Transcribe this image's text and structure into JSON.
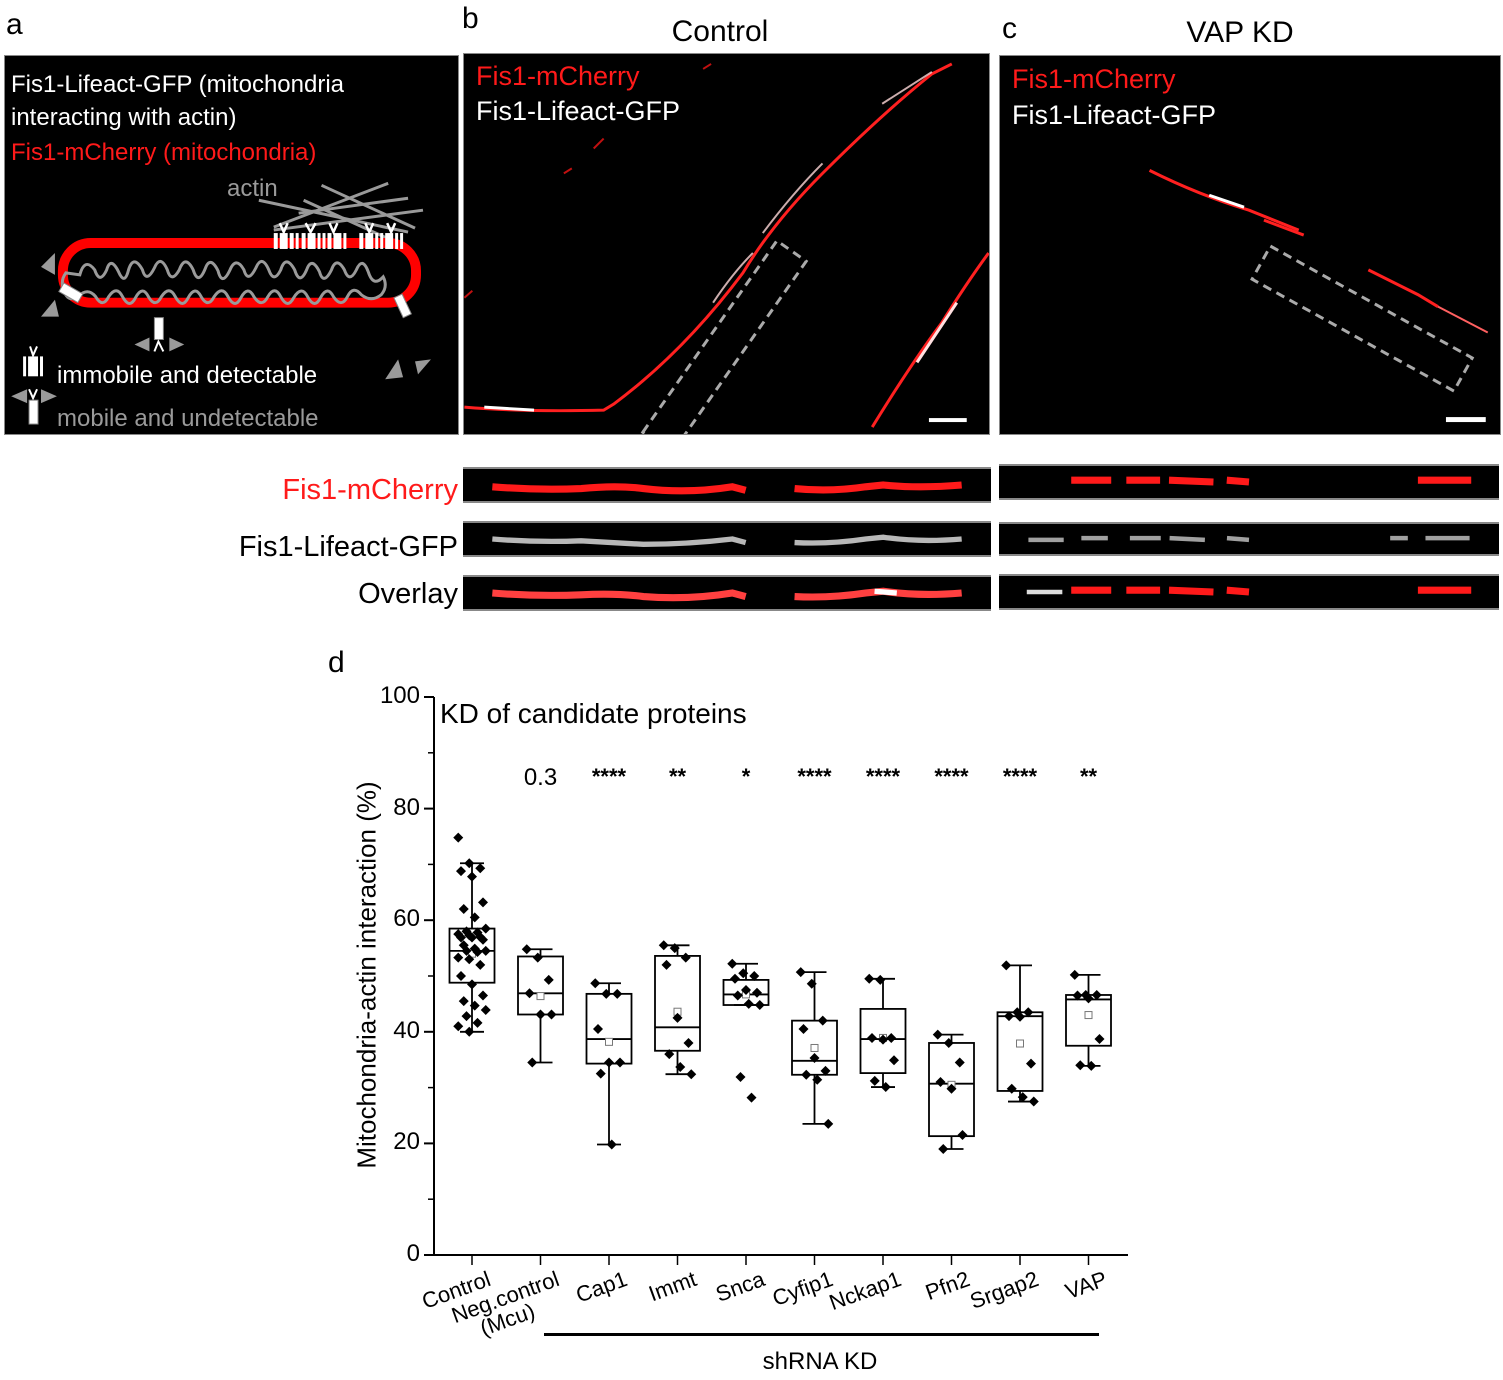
{
  "panels": {
    "a": {
      "letter": "a",
      "legend_line1": "Fis1-Lifeact-GFP (mitochondria",
      "legend_line2": "interacting with actin)",
      "legend_line3": "Fis1-mCherry (mitochondria)",
      "actin_label": "actin",
      "key_immobile": "immobile and detectable",
      "key_mobile": "mobile and undetectable",
      "colors": {
        "mito_outer": "#ff0000",
        "mito_inner": "#9a9a9a",
        "actin": "#9a9a9a",
        "probe": "#ffffff"
      }
    },
    "b": {
      "letter": "b",
      "title": "Control",
      "label_red": "Fis1-mCherry",
      "label_white": "Fis1-Lifeact-GFP"
    },
    "c": {
      "letter": "c",
      "title": "VAP KD",
      "label_red": "Fis1-mCherry",
      "label_white": "Fis1-Lifeact-GFP"
    },
    "strips": {
      "row_labels": [
        "Fis1-mCherry",
        "Fis1-Lifeact-GFP",
        "Overlay"
      ]
    },
    "d": {
      "letter": "d"
    }
  },
  "chart_data": {
    "type": "box",
    "title": "KD of candidate proteins",
    "xlabel": "",
    "ylabel": "Mitochondria-actin interaction (%)",
    "ylim": [
      0,
      100
    ],
    "yticks": [
      0,
      20,
      40,
      60,
      80,
      100
    ],
    "y_minor_ticks": [
      10,
      30,
      50,
      70,
      90
    ],
    "group_label": "shRNA KD",
    "categories": [
      "Control",
      "Neg.control (Mcu)",
      "Cap1",
      "Immt",
      "Snca",
      "Cyfip1",
      "Nckap1",
      "Pfn2",
      "Srgap2",
      "VAP"
    ],
    "category_labels": [
      {
        "line1": "Control",
        "line2": ""
      },
      {
        "line1": "Neg.control",
        "line2": "(Mcu)"
      },
      {
        "line1": "Cap1",
        "line2": ""
      },
      {
        "line1": "Immt",
        "line2": ""
      },
      {
        "line1": "Snca",
        "line2": ""
      },
      {
        "line1": "Cyfip1",
        "line2": ""
      },
      {
        "line1": "Nckap1",
        "line2": ""
      },
      {
        "line1": "Pfn2",
        "line2": ""
      },
      {
        "line1": "Srgap2",
        "line2": ""
      },
      {
        "line1": "VAP",
        "line2": ""
      }
    ],
    "significance": [
      "",
      "0.3",
      "****",
      "**",
      "*",
      "****",
      "****",
      "****",
      "****",
      "**"
    ],
    "boxes": [
      {
        "name": "Control",
        "whisker_low": 40.0,
        "q1": 48.8,
        "median": 54.5,
        "q3": 58.5,
        "whisker_high": 70.2,
        "mean": 54.0,
        "points": [
          74.8,
          70.2,
          69.3,
          68.8,
          67.8,
          63.2,
          62.0,
          60.5,
          58.5,
          58.0,
          57.8,
          57.5,
          57.3,
          57.0,
          56.9,
          56.9,
          56.5,
          55.5,
          54.9,
          54.5,
          54.5,
          54.3,
          53.3,
          53.0,
          52.0,
          50.0,
          48.5,
          46.5,
          45.5,
          44.7,
          43.9,
          42.8,
          41.6,
          41.0,
          40.0
        ]
      },
      {
        "name": "Neg.control (Mcu)",
        "whisker_low": 34.5,
        "q1": 43.1,
        "median": 46.9,
        "q3": 53.5,
        "whisker_high": 54.8,
        "mean": 46.4,
        "points": [
          54.8,
          53.3,
          49.3,
          46.9,
          43.1,
          43.1,
          34.5
        ]
      },
      {
        "name": "Cap1",
        "whisker_low": 19.8,
        "q1": 34.3,
        "median": 38.7,
        "q3": 46.8,
        "whisker_high": 48.7,
        "mean": 38.2,
        "points": [
          48.7,
          46.8,
          46.8,
          40.5,
          34.5,
          34.5,
          32.5,
          19.8
        ]
      },
      {
        "name": "Immt",
        "whisker_low": 32.4,
        "q1": 36.6,
        "median": 40.8,
        "q3": 53.6,
        "whisker_high": 55.5,
        "mean": 43.6,
        "points": [
          55.5,
          55.0,
          53.3,
          52.0,
          42.5,
          38.0,
          36.0,
          33.7,
          32.4
        ]
      },
      {
        "name": "Snca",
        "whisker_low": 44.8,
        "q1": 44.8,
        "median": 46.7,
        "q3": 49.3,
        "whisker_high": 52.2,
        "mean": 46.7,
        "points": [
          52.2,
          50.5,
          50.0,
          49.5,
          47.5,
          47.0,
          46.5,
          45.0,
          44.8,
          31.9,
          28.2
        ]
      },
      {
        "name": "Cyfip1",
        "whisker_low": 23.5,
        "q1": 32.3,
        "median": 34.8,
        "q3": 42.0,
        "whisker_high": 50.7,
        "mean": 37.1,
        "points": [
          50.7,
          48.6,
          42.0,
          40.5,
          35.3,
          33.0,
          32.3,
          31.4,
          23.5
        ]
      },
      {
        "name": "Nckap1",
        "whisker_low": 30.1,
        "q1": 32.6,
        "median": 38.7,
        "q3": 44.1,
        "whisker_high": 49.5,
        "mean": 38.9,
        "points": [
          49.5,
          49.3,
          38.9,
          38.9,
          38.6,
          34.9,
          31.2,
          30.1
        ]
      },
      {
        "name": "Pfn2",
        "whisker_low": 19.0,
        "q1": 21.3,
        "median": 30.7,
        "q3": 38.0,
        "whisker_high": 39.5,
        "mean": 30.5,
        "points": [
          39.5,
          38.0,
          34.5,
          31.0,
          29.8,
          21.5,
          19.0
        ]
      },
      {
        "name": "Srgap2",
        "whisker_low": 27.5,
        "q1": 29.4,
        "median": 42.8,
        "q3": 43.5,
        "whisker_high": 51.9,
        "mean": 37.9,
        "points": [
          51.9,
          43.5,
          43.5,
          42.8,
          42.7,
          34.3,
          29.8,
          28.3,
          27.5
        ]
      },
      {
        "name": "VAP",
        "whisker_low": 33.9,
        "q1": 37.5,
        "median": 45.8,
        "q3": 46.6,
        "whisker_high": 50.2,
        "mean": 43.0,
        "points": [
          50.2,
          46.6,
          46.6,
          46.5,
          46.0,
          38.7,
          34.0,
          33.9
        ]
      }
    ],
    "legend": [],
    "grid": false
  }
}
